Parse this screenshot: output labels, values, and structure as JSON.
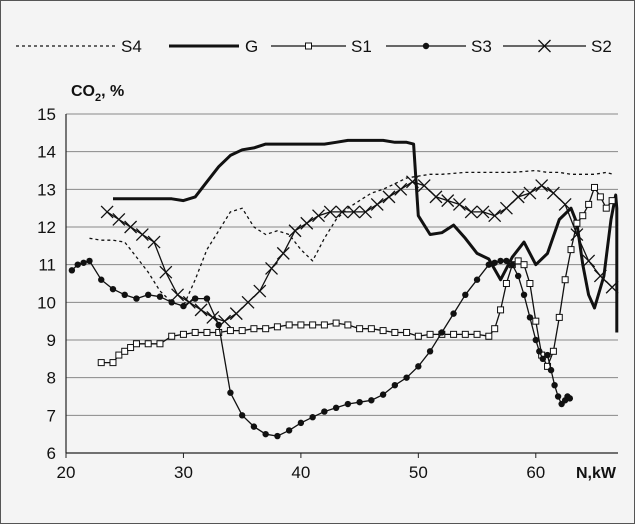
{
  "chart_data": {
    "type": "line",
    "xlabel": "N,kW",
    "ylabel": "CO₂, %",
    "ylabel_main": "CO",
    "ylabel_sub": "2",
    "ylabel_tail": ", %",
    "xlim": [
      20,
      67
    ],
    "ylim": [
      6,
      15
    ],
    "xticks": [
      20,
      30,
      40,
      50,
      60
    ],
    "yticks": [
      6,
      7,
      8,
      9,
      10,
      11,
      12,
      13,
      14,
      15
    ],
    "grid": "horizontal",
    "legend_position": "top",
    "series": [
      {
        "name": "S4",
        "style": "dotted",
        "x": [
          22,
          23,
          24,
          25,
          26,
          27,
          28,
          29,
          30,
          31,
          32,
          33,
          34,
          35,
          36,
          37,
          38,
          39,
          40,
          41,
          42,
          43,
          44,
          45,
          46,
          47,
          48,
          49,
          50,
          51,
          52,
          54,
          56,
          58,
          60,
          61,
          62,
          63,
          64,
          65,
          66,
          66.6
        ],
        "y": [
          11.7,
          11.65,
          11.65,
          11.6,
          11.2,
          10.8,
          10.3,
          10.0,
          9.9,
          10.6,
          11.4,
          11.9,
          12.4,
          12.5,
          12.0,
          11.8,
          11.9,
          11.8,
          11.4,
          11.1,
          11.7,
          12.2,
          12.5,
          12.7,
          12.9,
          13.0,
          13.15,
          13.3,
          13.35,
          13.4,
          13.4,
          13.45,
          13.45,
          13.45,
          13.5,
          13.45,
          13.45,
          13.4,
          13.4,
          13.4,
          13.45,
          13.4
        ]
      },
      {
        "name": "G",
        "style": "thick",
        "x": [
          24,
          26,
          28,
          29,
          30,
          31,
          32,
          33,
          34,
          35,
          36,
          37,
          38,
          39,
          40,
          41,
          42,
          43,
          44,
          45,
          46,
          47,
          48,
          49,
          49.6,
          50,
          51,
          52,
          53,
          54,
          55,
          56,
          57,
          58,
          59,
          60,
          61,
          62,
          63,
          63.5,
          64,
          64.5,
          65,
          65.8,
          66.4,
          66.8,
          66.9,
          66.9
        ],
        "y": [
          12.75,
          12.75,
          12.75,
          12.75,
          12.7,
          12.8,
          13.2,
          13.6,
          13.9,
          14.05,
          14.1,
          14.2,
          14.2,
          14.2,
          14.2,
          14.2,
          14.2,
          14.25,
          14.3,
          14.3,
          14.3,
          14.3,
          14.25,
          14.25,
          14.2,
          12.3,
          11.8,
          11.85,
          12.05,
          11.7,
          11.3,
          11.15,
          10.6,
          11.2,
          11.6,
          11.0,
          11.3,
          12.2,
          12.5,
          12.1,
          11.0,
          10.2,
          9.85,
          10.7,
          12.2,
          12.85,
          12.5,
          9.2
        ]
      },
      {
        "name": "S1",
        "style": "marker-square",
        "x": [
          23,
          24,
          24.5,
          25,
          25.5,
          26,
          27,
          28,
          29,
          30,
          31,
          32,
          33,
          34,
          35,
          36,
          37,
          38,
          39,
          40,
          41,
          42,
          43,
          44,
          45,
          46,
          47,
          48,
          49,
          50,
          51,
          52,
          53,
          54,
          55,
          56,
          56.5,
          57,
          57.5,
          58,
          58.5,
          59,
          59.5,
          60,
          60.5,
          61,
          61.5,
          62,
          62.5,
          63,
          63.5,
          64,
          64.5,
          65,
          65.5,
          66,
          66.5
        ],
        "y": [
          8.4,
          8.4,
          8.6,
          8.7,
          8.8,
          8.9,
          8.9,
          8.9,
          9.1,
          9.15,
          9.2,
          9.2,
          9.2,
          9.25,
          9.25,
          9.3,
          9.3,
          9.35,
          9.4,
          9.4,
          9.4,
          9.4,
          9.45,
          9.4,
          9.3,
          9.3,
          9.25,
          9.2,
          9.2,
          9.1,
          9.15,
          9.15,
          9.15,
          9.15,
          9.15,
          9.1,
          9.3,
          9.8,
          10.5,
          11.0,
          11.1,
          11.0,
          10.5,
          9.5,
          8.6,
          8.3,
          8.7,
          9.6,
          10.6,
          11.4,
          12.1,
          12.3,
          12.6,
          13.05,
          12.8,
          12.5,
          12.7
        ]
      },
      {
        "name": "S3",
        "style": "marker-dot",
        "x": [
          20.5,
          21,
          21.5,
          22,
          23,
          24,
          25,
          26,
          27,
          28,
          29,
          30,
          31,
          32,
          33,
          34,
          35,
          36,
          37,
          38,
          39,
          40,
          41,
          42,
          43,
          44,
          45,
          46,
          47,
          48,
          49,
          50,
          51,
          52,
          53,
          54,
          55,
          56,
          56.5,
          57,
          57.5,
          58,
          58.5,
          59,
          59.5,
          60,
          60.3,
          60.6,
          61,
          61.3,
          61.6,
          61.9,
          62.2,
          62.5,
          62.7,
          62.9
        ],
        "y": [
          10.85,
          11.0,
          11.05,
          11.1,
          10.6,
          10.35,
          10.2,
          10.1,
          10.2,
          10.15,
          10.0,
          9.9,
          10.1,
          10.1,
          9.4,
          7.6,
          7.0,
          6.7,
          6.5,
          6.45,
          6.6,
          6.8,
          6.95,
          7.1,
          7.2,
          7.3,
          7.35,
          7.4,
          7.55,
          7.8,
          8.0,
          8.3,
          8.7,
          9.2,
          9.7,
          10.2,
          10.6,
          11.0,
          11.05,
          11.1,
          11.1,
          11.0,
          10.7,
          10.2,
          9.6,
          9.0,
          8.7,
          8.5,
          8.6,
          8.2,
          7.8,
          7.5,
          7.3,
          7.4,
          7.5,
          7.45
        ]
      },
      {
        "name": "S2",
        "style": "marker-x",
        "x": [
          23.5,
          24.5,
          25.5,
          26.5,
          27.5,
          28.5,
          29.5,
          30.5,
          31.5,
          32.5,
          33.5,
          34.5,
          35.5,
          36.5,
          37.5,
          38.5,
          39.5,
          40.5,
          41.5,
          42.5,
          43.5,
          44.5,
          45.5,
          46.5,
          47.5,
          48.5,
          49.5,
          50.5,
          51.5,
          52.5,
          53.5,
          54.5,
          55.5,
          56.5,
          57.5,
          58.5,
          59.5,
          60.5,
          61.5,
          62.5,
          63.5,
          64.5,
          65.5,
          66.5
        ],
        "y": [
          12.4,
          12.2,
          12.0,
          11.8,
          11.6,
          10.8,
          10.2,
          10.0,
          9.8,
          9.6,
          9.5,
          9.7,
          10.0,
          10.3,
          10.9,
          11.3,
          11.9,
          12.1,
          12.3,
          12.4,
          12.4,
          12.4,
          12.4,
          12.6,
          12.8,
          13.0,
          13.2,
          13.1,
          12.8,
          12.7,
          12.6,
          12.4,
          12.4,
          12.3,
          12.5,
          12.8,
          12.9,
          13.1,
          12.9,
          12.6,
          11.8,
          11.1,
          10.7,
          10.4
        ]
      }
    ]
  }
}
